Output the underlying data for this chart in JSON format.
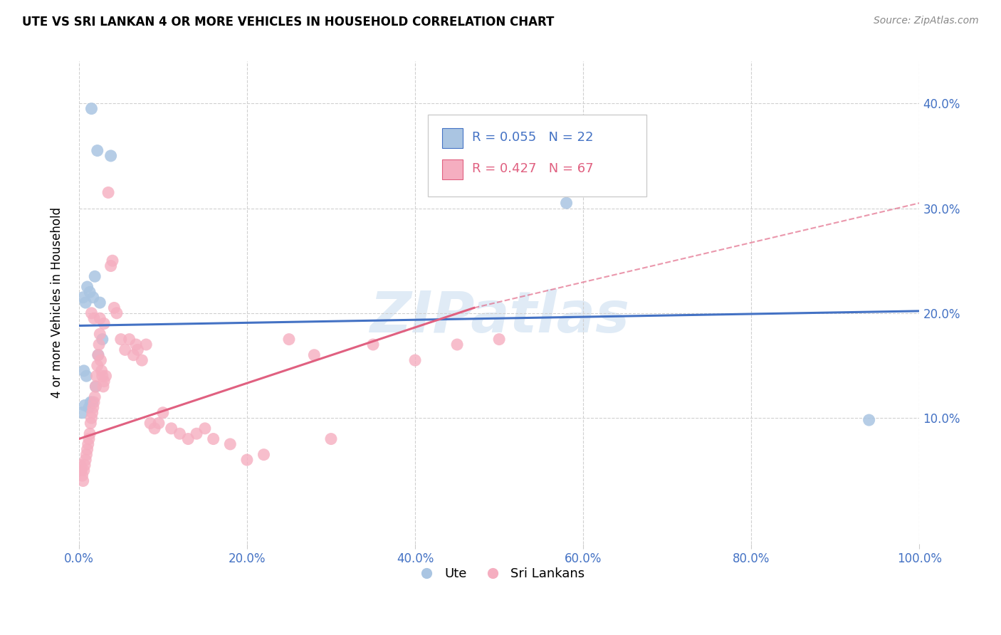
{
  "title": "UTE VS SRI LANKAN 4 OR MORE VEHICLES IN HOUSEHOLD CORRELATION CHART",
  "source": "Source: ZipAtlas.com",
  "ylabel": "4 or more Vehicles in Household",
  "xlim": [
    0,
    100
  ],
  "ylim": [
    -2,
    44
  ],
  "yticks": [
    10,
    20,
    30,
    40
  ],
  "xticks": [
    0,
    20,
    40,
    60,
    80,
    100
  ],
  "ytick_labels": [
    "10.0%",
    "20.0%",
    "30.0%",
    "40.0%"
  ],
  "xtick_labels": [
    "0.0%",
    "20.0%",
    "40.0%",
    "60.0%",
    "80.0%",
    "100.0%"
  ],
  "legend_blue_r": "R = 0.055",
  "legend_blue_n": "N = 22",
  "legend_pink_r": "R = 0.427",
  "legend_pink_n": "N = 67",
  "blue_color": "#aac5e2",
  "pink_color": "#f5aec0",
  "blue_line_color": "#4472c4",
  "pink_line_color": "#e06080",
  "watermark": "ZIPatlas",
  "blue_line_x0": 0,
  "blue_line_y0": 18.8,
  "blue_line_x1": 100,
  "blue_line_y1": 20.2,
  "pink_solid_x0": 0,
  "pink_solid_y0": 8.0,
  "pink_solid_x1": 47,
  "pink_solid_y1": 20.5,
  "pink_dash_x0": 47,
  "pink_dash_y0": 20.5,
  "pink_dash_x1": 100,
  "pink_dash_y1": 30.5,
  "blue_x": [
    1.5,
    2.2,
    3.8,
    1.0,
    1.3,
    0.8,
    1.7,
    2.5,
    1.9,
    0.5,
    0.6,
    0.9,
    1.4,
    2.0,
    1.2,
    2.8,
    2.3,
    1.6,
    0.7,
    58.0,
    0.4,
    94.0
  ],
  "blue_y": [
    39.5,
    35.5,
    35.0,
    22.5,
    22.0,
    21.0,
    21.5,
    21.0,
    23.5,
    21.5,
    14.5,
    14.0,
    11.5,
    13.0,
    11.0,
    17.5,
    16.0,
    11.5,
    11.2,
    30.5,
    10.5,
    9.8
  ],
  "pink_x": [
    0.2,
    0.3,
    0.4,
    0.5,
    0.6,
    0.7,
    0.8,
    0.9,
    1.0,
    1.1,
    1.2,
    1.3,
    1.4,
    1.5,
    1.6,
    1.7,
    1.8,
    1.9,
    2.0,
    2.1,
    2.2,
    2.3,
    2.4,
    2.5,
    2.6,
    2.7,
    2.8,
    2.9,
    3.0,
    3.2,
    3.5,
    3.8,
    4.0,
    4.5,
    5.0,
    5.5,
    6.0,
    6.5,
    7.0,
    7.5,
    8.0,
    8.5,
    9.0,
    10.0,
    11.0,
    12.0,
    13.0,
    14.0,
    15.0,
    16.0,
    18.0,
    20.0,
    22.0,
    25.0,
    28.0,
    30.0,
    35.0,
    40.0,
    45.0,
    50.0,
    2.5,
    3.0,
    1.5,
    1.8,
    4.2,
    6.8,
    9.5
  ],
  "pink_y": [
    5.5,
    5.0,
    4.5,
    4.0,
    5.0,
    5.5,
    6.0,
    6.5,
    7.0,
    7.5,
    8.0,
    8.5,
    9.5,
    10.0,
    10.5,
    11.0,
    11.5,
    12.0,
    13.0,
    14.0,
    15.0,
    16.0,
    17.0,
    18.0,
    15.5,
    14.5,
    14.0,
    13.0,
    13.5,
    14.0,
    31.5,
    24.5,
    25.0,
    20.0,
    17.5,
    16.5,
    17.5,
    16.0,
    16.5,
    15.5,
    17.0,
    9.5,
    9.0,
    10.5,
    9.0,
    8.5,
    8.0,
    8.5,
    9.0,
    8.0,
    7.5,
    6.0,
    6.5,
    17.5,
    16.0,
    8.0,
    17.0,
    15.5,
    17.0,
    17.5,
    19.5,
    19.0,
    20.0,
    19.5,
    20.5,
    17.0,
    9.5
  ]
}
